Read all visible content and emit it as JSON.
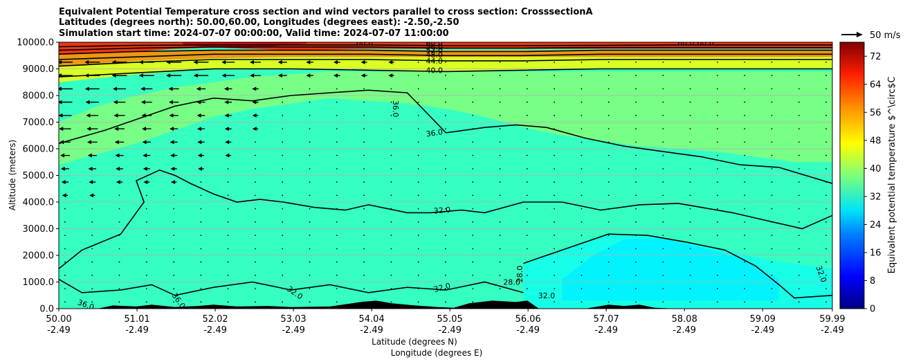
{
  "chart_data": {
    "type": "heatmap",
    "title_lines": [
      "Equivalent Potential Temperature cross section and wind vectors parallel to cross section: CrosssectionA",
      "Latitudes (degrees north): 50.00,60.00, Longitudes (degrees east): -2.50,-2.50",
      "Simulation start time: 2024-07-07 00:00:00, Valid time: 2024-07-07 11:00:00"
    ],
    "xlabel_line1": "Latitude (degrees N)",
    "xlabel_line2": "Longitude (degrees E)",
    "ylabel": "Altitude (meters)",
    "ylim": [
      0,
      10000
    ],
    "xlim": [
      50.0,
      59.99
    ],
    "y_ticks": [
      0,
      1000,
      2000,
      3000,
      4000,
      5000,
      6000,
      7000,
      8000,
      9000,
      10000
    ],
    "y_tick_labels": [
      "0.0",
      "1000.0",
      "2000.0",
      "3000.0",
      "4000.0",
      "5000.0",
      "6000.0",
      "7000.0",
      "8000.0",
      "9000.0",
      "10000.0"
    ],
    "x_ticks": [
      {
        "lat": 50.0,
        "lat_label": "50.00",
        "lon_label": "-2.49"
      },
      {
        "lat": 51.01,
        "lat_label": "51.01",
        "lon_label": "-2.49"
      },
      {
        "lat": 52.02,
        "lat_label": "52.02",
        "lon_label": "-2.49"
      },
      {
        "lat": 53.03,
        "lat_label": "53.03",
        "lon_label": "-2.49"
      },
      {
        "lat": 54.04,
        "lat_label": "54.04",
        "lon_label": "-2.49"
      },
      {
        "lat": 55.05,
        "lat_label": "55.05",
        "lon_label": "-2.49"
      },
      {
        "lat": 56.06,
        "lat_label": "56.06",
        "lon_label": "-2.49"
      },
      {
        "lat": 57.07,
        "lat_label": "57.07",
        "lon_label": "-2.49"
      },
      {
        "lat": 58.08,
        "lat_label": "58.08",
        "lon_label": "-2.49"
      },
      {
        "lat": 59.09,
        "lat_label": "59.09",
        "lon_label": "-2.49"
      },
      {
        "lat": 59.99,
        "lat_label": "59.99",
        "lon_label": "-2.49"
      }
    ],
    "grid": true,
    "colorbar": {
      "label": "Equivalent potential temperature $^\\circ$C",
      "vmin": 0,
      "vmax": 76,
      "ticks": [
        0,
        8,
        16,
        24,
        32,
        40,
        48,
        56,
        64,
        72
      ],
      "tick_labels": [
        "0",
        "8",
        "16",
        "24",
        "32",
        "40",
        "48",
        "56",
        "64",
        "72"
      ],
      "placement": "right"
    },
    "wind_key": {
      "label": "50 m/s",
      "speed": 50,
      "placement": "top-right"
    },
    "field_bands": [
      {
        "name": "theta-e-28-29",
        "lat": [
          56.0,
          56.3,
          56.7,
          57.1,
          57.6,
          58.1,
          58.6,
          59.2,
          59.99
        ],
        "bottom": [
          0,
          0,
          0,
          0,
          0,
          0,
          0,
          0,
          0
        ],
        "top": [
          1700,
          2000,
          2400,
          2800,
          2750,
          2500,
          2200,
          1800,
          1500
        ],
        "value": 30
      },
      {
        "name": "theta-e-26",
        "lat": [
          56.5,
          56.9,
          57.3,
          57.8,
          58.3,
          58.8,
          59.3
        ],
        "bottom": [
          300,
          300,
          300,
          300,
          300,
          300,
          300
        ],
        "top": [
          1100,
          2000,
          2600,
          2650,
          2300,
          1900,
          1100
        ],
        "value": 27.5
      },
      {
        "name": "theta-e-38-upper",
        "lat": [
          50.0,
          50.5,
          51.0,
          51.5,
          52.0,
          52.5,
          53.0,
          53.5,
          54.0,
          54.5,
          55.0,
          55.5,
          56.0,
          56.5,
          57.0,
          57.5,
          58.0,
          58.5,
          59.0,
          59.5,
          59.99
        ],
        "bottom": [
          5400,
          5800,
          6200,
          6700,
          7200,
          7500,
          7700,
          7900,
          7800,
          7700,
          7500,
          7200,
          6800,
          6500,
          6300,
          6100,
          6000,
          5900,
          5700,
          5500,
          5500
        ],
        "top": [
          7000,
          7600,
          8000,
          8300,
          8500,
          8700,
          8800,
          8900,
          8900,
          8900,
          8900,
          8900,
          8900,
          8900,
          8900,
          8900,
          8900,
          8900,
          8900,
          8900,
          8900
        ],
        "value": 38
      },
      {
        "name": "theta-e-44-48",
        "lat": [
          50.0,
          51.0,
          52.0,
          53.0,
          54.0,
          55.0,
          56.0,
          57.0,
          58.0,
          59.0,
          59.99
        ],
        "bottom": [
          8500,
          8800,
          9000,
          9000,
          8950,
          8900,
          8950,
          9000,
          9000,
          9000,
          9000
        ],
        "top": [
          9100,
          9300,
          9400,
          9450,
          9450,
          9450,
          9450,
          9450,
          9450,
          9450,
          9450
        ],
        "value": 46
      },
      {
        "name": "theta-e-52-56",
        "lat": [
          50.0,
          51.0,
          52.0,
          53.0,
          54.0,
          55.0,
          56.0,
          57.0,
          58.0,
          59.0,
          59.99
        ],
        "bottom": [
          9100,
          9300,
          9400,
          9450,
          9450,
          9450,
          9450,
          9450,
          9450,
          9450,
          9450
        ],
        "top": [
          9550,
          9650,
          9700,
          9700,
          9700,
          9700,
          9700,
          9700,
          9700,
          9700,
          9700
        ],
        "value": 56
      },
      {
        "name": "theta-e-62-70",
        "lat": [
          50.0,
          51.0,
          51.5,
          52.0,
          52.5,
          53.0,
          54.0,
          55.0,
          56.0,
          57.0,
          58.0,
          59.0,
          59.99
        ],
        "bottom": [
          9550,
          9650,
          9750,
          9800,
          9750,
          9700,
          9750,
          9750,
          9750,
          9750,
          9750,
          9750,
          9750
        ],
        "top": [
          10000,
          10000,
          10000,
          10000,
          10000,
          10000,
          10000,
          10000,
          10000,
          10000,
          10000,
          10000,
          10000
        ],
        "value": 64
      },
      {
        "name": "theta-e-70-peak",
        "lat": [
          51.6,
          52.0,
          52.4,
          52.8,
          53.2
        ],
        "bottom": [
          9920,
          9800,
          9780,
          9850,
          9950
        ],
        "top": [
          10000,
          10000,
          10000,
          10000,
          10000
        ],
        "value": 70
      }
    ],
    "contour_levels": [
      "28.0",
      "32.0",
      "36.0",
      "40.0",
      "44.0",
      "48.0",
      "52.0",
      "56.0",
      "60.0"
    ],
    "contours": [
      {
        "label": "32.0",
        "lat": [
          50.0,
          50.3,
          50.8,
          50.9,
          51.1,
          51.0,
          51.3,
          51.5,
          51.7,
          52.0,
          52.3,
          52.6,
          52.9,
          53.3,
          53.7,
          54.0,
          54.5,
          54.8,
          55.2,
          55.5,
          56.0,
          56.5,
          57.0,
          57.5,
          58.0,
          58.3,
          58.7,
          59.0,
          59.3,
          59.6,
          59.99
        ],
        "alt": [
          1500,
          2200,
          2800,
          3200,
          4000,
          4800,
          5200,
          5000,
          4700,
          4300,
          4000,
          4100,
          4000,
          3800,
          3700,
          3900,
          3600,
          3600,
          3700,
          3600,
          4000,
          4000,
          3700,
          3900,
          3950,
          3800,
          3600,
          3400,
          3200,
          3000,
          3500
        ]
      },
      {
        "label": "36.0",
        "lat": [
          50.0,
          50.6,
          51.1,
          51.5,
          52.0,
          52.5,
          53.0,
          53.5,
          54.0,
          54.5,
          55.0,
          55.5,
          55.9,
          56.3,
          56.8,
          57.3,
          57.8,
          58.3,
          58.8,
          59.3,
          59.99
        ],
        "alt": [
          6200,
          6700,
          7200,
          7600,
          7900,
          7800,
          8000,
          8100,
          8200,
          8100,
          6600,
          6800,
          6900,
          6800,
          6400,
          6100,
          5900,
          5700,
          5400,
          5300,
          4700
        ]
      },
      {
        "label": "40.0",
        "lat": [
          50.0,
          51.0,
          52.0,
          53.0,
          54.0,
          55.0,
          56.0,
          57.0,
          58.0,
          59.0,
          59.99
        ],
        "alt": [
          8700,
          8850,
          9000,
          9000,
          8950,
          8900,
          8950,
          9000,
          9000,
          9000,
          9000
        ]
      },
      {
        "label": "44.0",
        "lat": [
          50.0,
          51.0,
          52.0,
          53.0,
          54.0,
          55.0,
          56.0,
          57.0,
          58.0,
          59.0,
          59.99
        ],
        "alt": [
          9100,
          9250,
          9350,
          9350,
          9350,
          9300,
          9300,
          9350,
          9350,
          9350,
          9350
        ]
      },
      {
        "label": "48.0",
        "lat": [
          50.0,
          51.0,
          52.0,
          53.0,
          54.0,
          55.0,
          56.0,
          57.0,
          58.0,
          59.0,
          59.99
        ],
        "alt": [
          9350,
          9450,
          9550,
          9550,
          9550,
          9500,
          9500,
          9550,
          9550,
          9550,
          9550
        ]
      },
      {
        "label": "52.0",
        "lat": [
          50.0,
          51.0,
          52.0,
          53.0,
          54.0,
          55.0,
          56.0,
          57.0,
          58.0,
          59.0,
          59.99
        ],
        "alt": [
          9550,
          9650,
          9700,
          9700,
          9700,
          9650,
          9650,
          9700,
          9700,
          9700,
          9700
        ]
      },
      {
        "label": "56.0",
        "lat": [
          50.0,
          51.0,
          52.0,
          53.0,
          54.0,
          55.0,
          56.0,
          57.0,
          58.0,
          59.0,
          59.99
        ],
        "alt": [
          9700,
          9780,
          9820,
          9820,
          9820,
          9780,
          9780,
          9800,
          9800,
          9800,
          9800
        ]
      },
      {
        "label": "60.0",
        "lat": [
          50.0,
          51.0,
          52.0,
          53.0,
          54.0,
          55.0,
          56.0,
          57.0,
          58.0,
          59.0,
          59.99
        ],
        "alt": [
          9830,
          9880,
          9900,
          9900,
          9900,
          9870,
          9870,
          9880,
          9900,
          9900,
          9900
        ]
      },
      {
        "label": "28.0",
        "lat": [
          56.0,
          56.3,
          56.7,
          57.1,
          57.6,
          58.1,
          58.6,
          59.0,
          59.3,
          59.5,
          59.99
        ],
        "alt": [
          1700,
          2000,
          2400,
          2800,
          2750,
          2500,
          2200,
          1600,
          900,
          400,
          500
        ]
      },
      {
        "label": "36.0",
        "lat": [
          50.0,
          50.3,
          50.8,
          51.2,
          51.5,
          52.0,
          52.5,
          53.0,
          53.5,
          54.0,
          54.5,
          55.0,
          55.5,
          56.0
        ],
        "alt": [
          1100,
          600,
          700,
          900,
          500,
          800,
          1000,
          700,
          900,
          600,
          800,
          700,
          1000,
          600
        ]
      }
    ],
    "inline_labels": [
      {
        "text": "36.0",
        "lat": 54.35,
        "alt": 7500,
        "rot": 90
      },
      {
        "text": "36.0",
        "lat": 54.85,
        "alt": 6600,
        "rot": -8
      },
      {
        "text": "32.0",
        "lat": 54.95,
        "alt": 3700,
        "rot": -5
      },
      {
        "text": "32.0",
        "lat": 54.95,
        "alt": 800,
        "rot": -15
      },
      {
        "text": "32.0",
        "lat": 53.05,
        "alt": 600,
        "rot": 35
      },
      {
        "text": "36.0",
        "lat": 51.55,
        "alt": 300,
        "rot": 55
      },
      {
        "text": "36.0",
        "lat": 50.35,
        "alt": 150,
        "rot": 20
      },
      {
        "text": "28.0",
        "lat": 55.95,
        "alt": 1300,
        "rot": -90
      },
      {
        "text": "28.0",
        "lat": 55.85,
        "alt": 1000,
        "rot": 0
      },
      {
        "text": "32.0",
        "lat": 56.3,
        "alt": 500,
        "rot": 0
      },
      {
        "text": "32.0",
        "lat": 59.85,
        "alt": 1300,
        "rot": 70
      },
      {
        "text": "40.0",
        "lat": 54.85,
        "alt": 8950,
        "rot": 0
      },
      {
        "text": "44.0",
        "lat": 54.85,
        "alt": 9300,
        "rot": 0
      },
      {
        "text": "48.0",
        "lat": 54.85,
        "alt": 9530,
        "rot": 0
      },
      {
        "text": "52.0",
        "lat": 54.85,
        "alt": 9700,
        "rot": 0
      },
      {
        "text": "56.0",
        "lat": 54.85,
        "alt": 9830,
        "rot": 0
      },
      {
        "text": "60.0",
        "lat": 54.85,
        "alt": 9960,
        "rot": 0
      },
      {
        "text": "60.0",
        "lat": 53.95,
        "alt": 9990,
        "rot": 0
      },
      {
        "text": "60.0",
        "lat": 58.1,
        "alt": 9990,
        "rot": 0
      },
      {
        "text": "60.0",
        "lat": 58.35,
        "alt": 9990,
        "rot": 0
      }
    ],
    "terrain": {
      "lat": [
        50.0,
        50.5,
        50.7,
        51.0,
        51.2,
        51.5,
        51.8,
        52.0,
        52.3,
        52.7,
        53.0,
        53.5,
        53.9,
        54.1,
        54.3,
        54.6,
        54.9,
        55.1,
        55.3,
        55.6,
        55.9,
        56.05,
        56.2,
        56.8,
        57.1,
        57.3,
        57.5,
        57.7,
        58.0
      ],
      "alt": [
        0,
        0,
        120,
        80,
        150,
        60,
        100,
        150,
        80,
        100,
        60,
        80,
        250,
        300,
        200,
        120,
        60,
        30,
        200,
        300,
        250,
        300,
        0,
        0,
        150,
        100,
        150,
        30,
        0
      ]
    },
    "wind": {
      "description": "Westward (leftward) wind vectors, strong aloft in the western half, weak elsewhere",
      "key_speed": 50
    }
  }
}
